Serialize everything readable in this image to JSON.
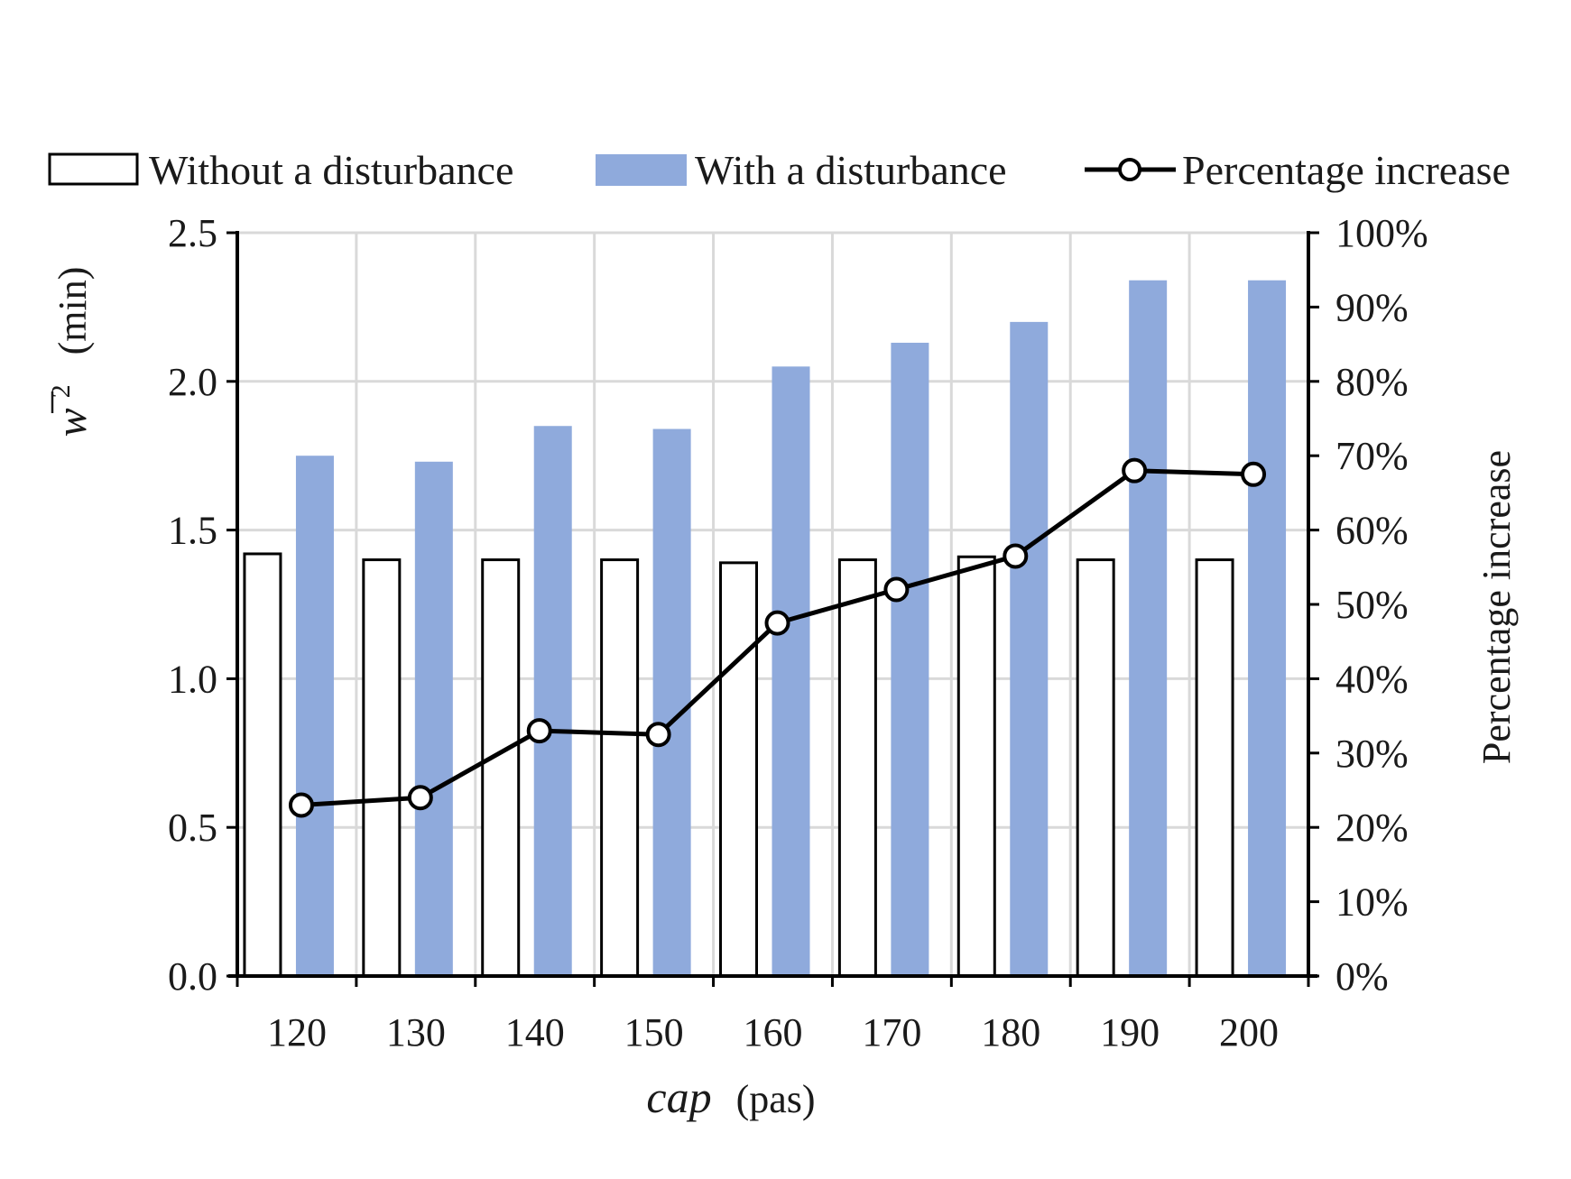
{
  "colors": {
    "bar_without": "#ffffff",
    "bar_without_stroke": "#000000",
    "bar_with": "#8faadc",
    "line": "#000000",
    "marker_fill": "#ffffff",
    "grid": "#d9d9d9",
    "axis": "#000000"
  },
  "legend": {
    "without_label": "Without a disturbance",
    "with_label": "With a disturbance",
    "pct_label": "Percentage increase"
  },
  "axes": {
    "x_title_var": "cap",
    "x_title_unit": "(pas)",
    "y_left_title_symbol": "w",
    "y_left_title_sup": "2",
    "y_left_title_unit": "(min)",
    "y_right_title": "Percentage increase"
  },
  "chart_data": {
    "type": "bar",
    "categories": [
      "120",
      "130",
      "140",
      "150",
      "160",
      "170",
      "180",
      "190",
      "200"
    ],
    "series": [
      {
        "name": "Without a disturbance",
        "type": "bar",
        "axis": "left",
        "values": [
          1.42,
          1.4,
          1.4,
          1.4,
          1.39,
          1.4,
          1.41,
          1.4,
          1.4
        ]
      },
      {
        "name": "With a disturbance",
        "type": "bar",
        "axis": "left",
        "values": [
          1.75,
          1.73,
          1.85,
          1.84,
          2.05,
          2.13,
          2.2,
          2.34,
          2.34
        ]
      },
      {
        "name": "Percentage increase",
        "type": "line",
        "axis": "right",
        "values": [
          23,
          24,
          33,
          32.5,
          47.5,
          52,
          56.5,
          68,
          67.5
        ]
      }
    ],
    "y_left": {
      "min": 0,
      "max": 2.5,
      "ticks": [
        "0.0",
        "0.5",
        "1.0",
        "1.5",
        "2.0",
        "2.5"
      ]
    },
    "y_right": {
      "min": 0,
      "max": 100,
      "unit": "%",
      "ticks": [
        "0%",
        "10%",
        "20%",
        "30%",
        "40%",
        "50%",
        "60%",
        "70%",
        "80%",
        "90%",
        "100%"
      ]
    },
    "grid": true,
    "legend_position": "top"
  }
}
